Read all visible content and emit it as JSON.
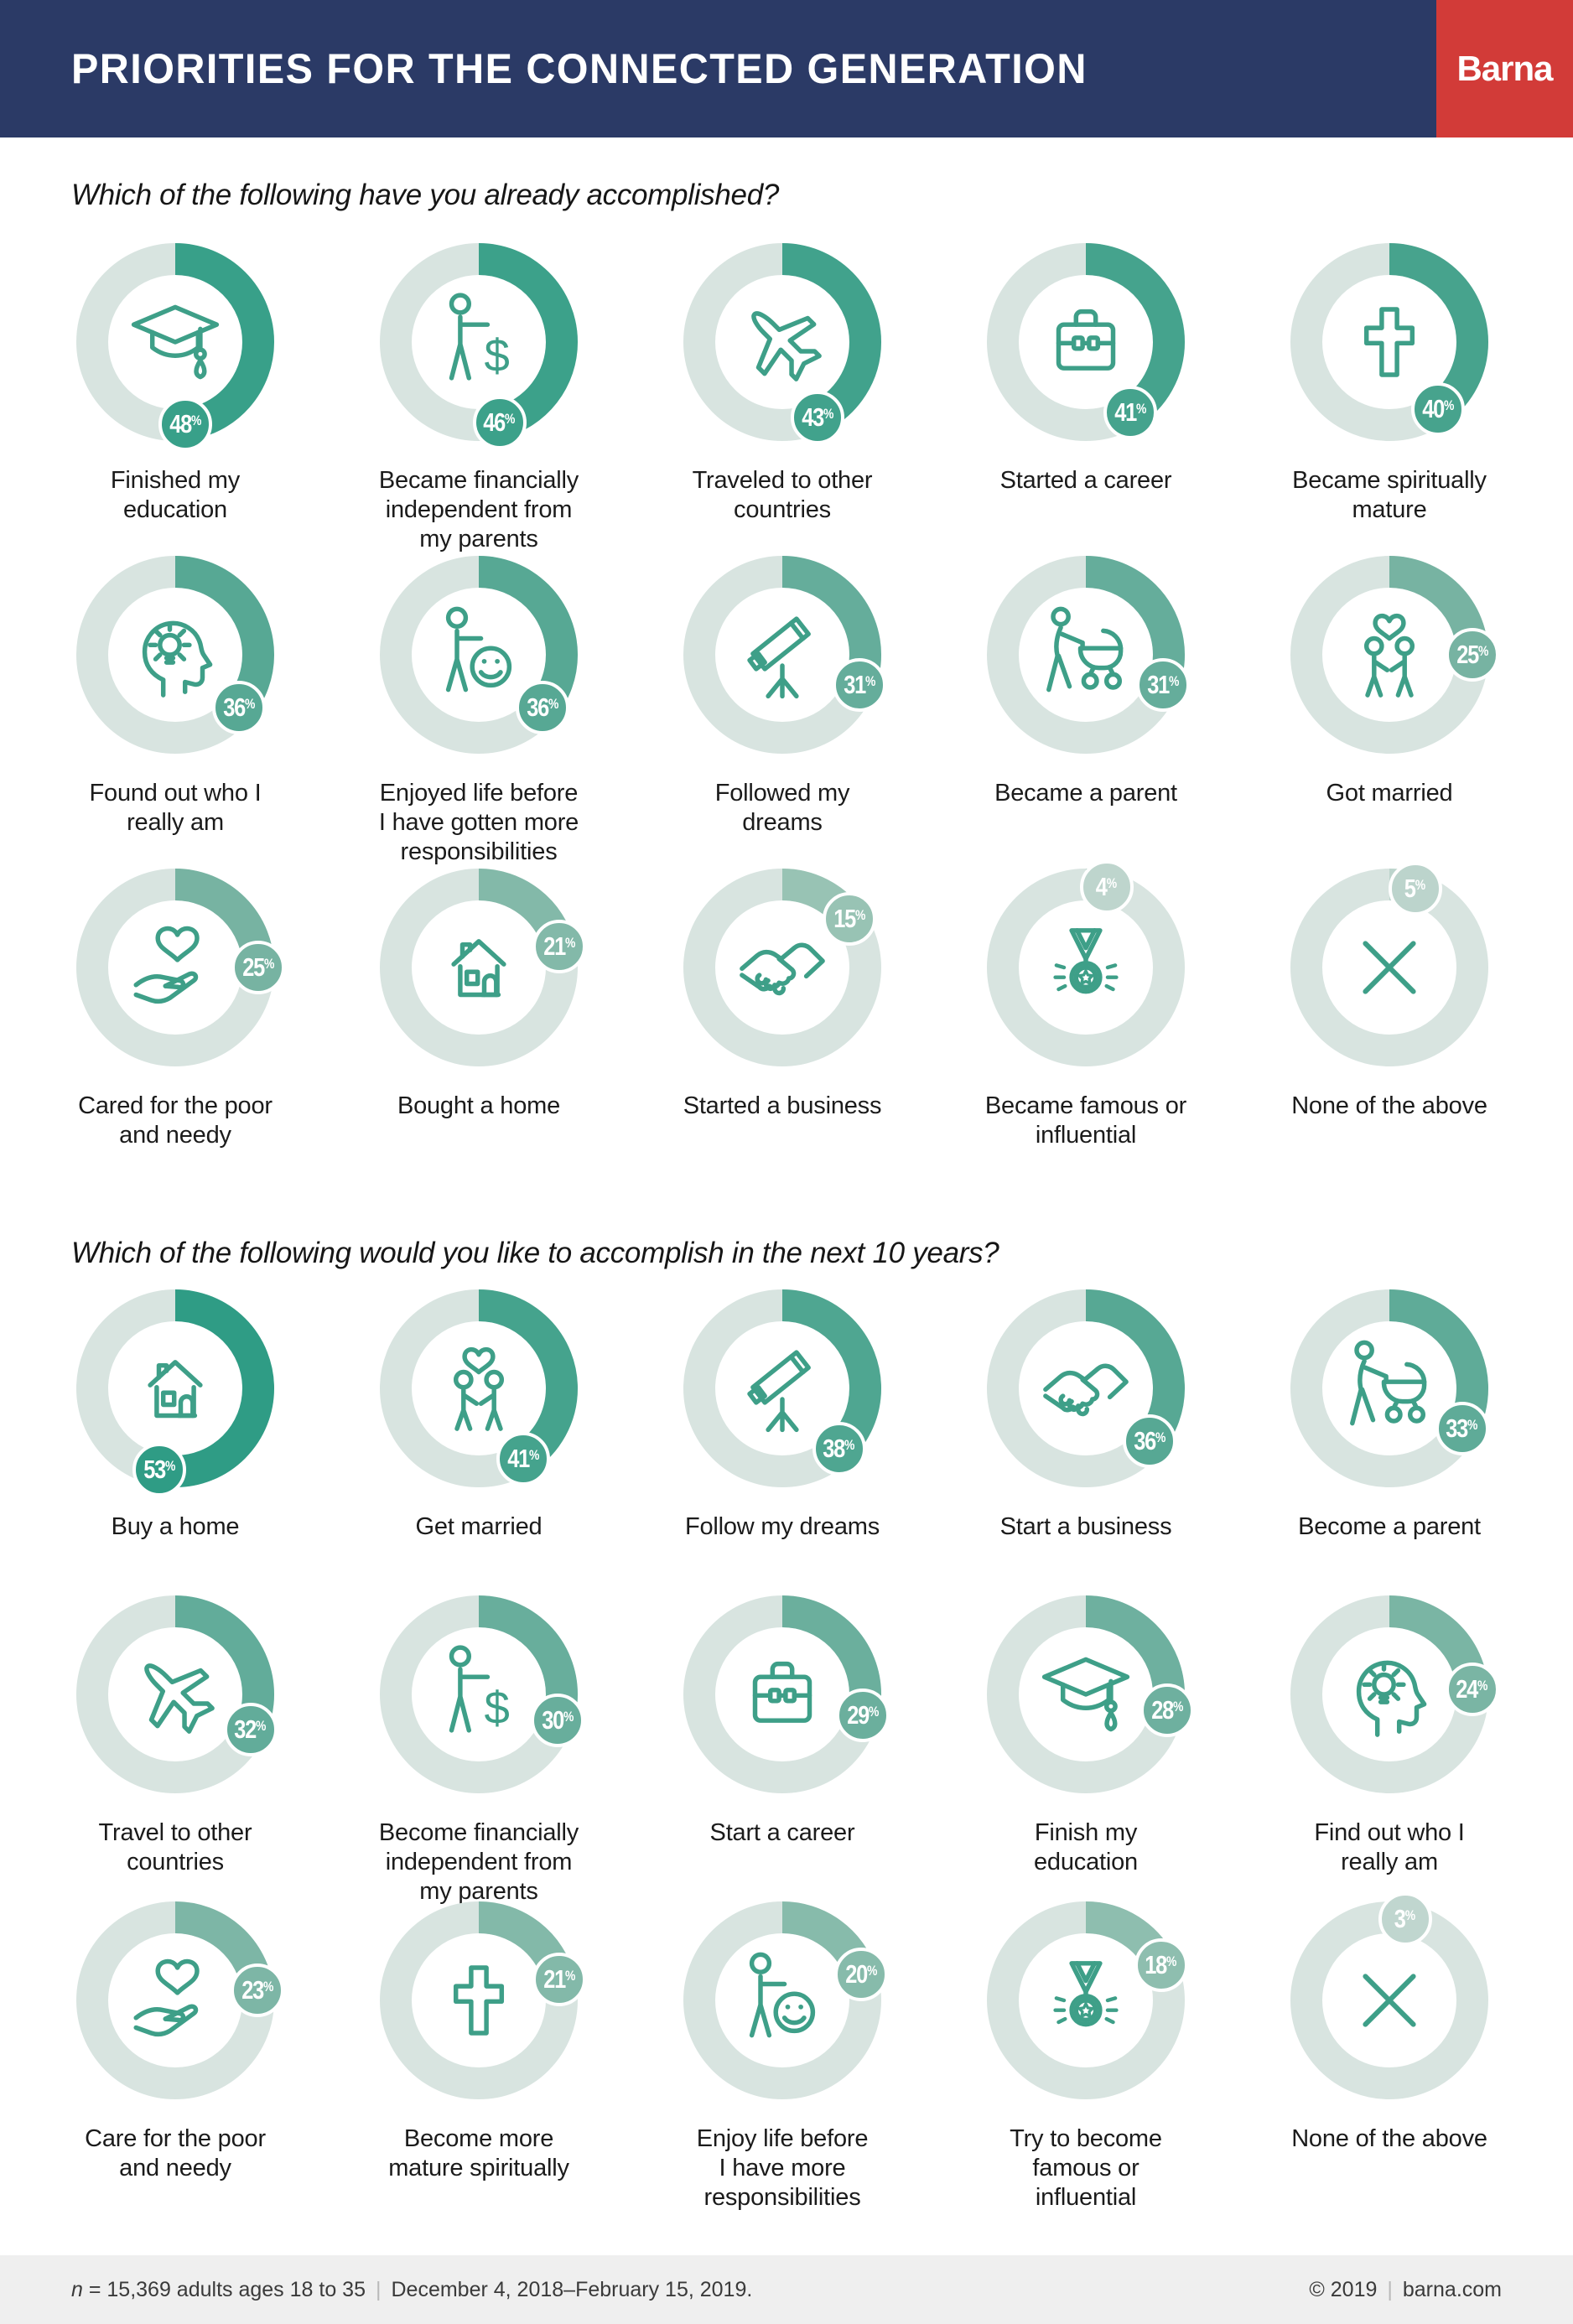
{
  "header": {
    "title": "PRIORITIES FOR THE CONNECTED GENERATION",
    "brand": "Barna"
  },
  "sections": [
    {
      "question": "Which of the following have you already accomplished?",
      "items": [
        {
          "label": "Finished my\neducation",
          "pct": 48,
          "icon": "graduation-cap"
        },
        {
          "label": "Became financially\nindependent from\nmy parents",
          "pct": 46,
          "icon": "person-dollar"
        },
        {
          "label": "Traveled to other\ncountries",
          "pct": 43,
          "icon": "airplane"
        },
        {
          "label": "Started a career",
          "pct": 41,
          "icon": "briefcase"
        },
        {
          "label": "Became spiritually\nmature",
          "pct": 40,
          "icon": "cross"
        },
        {
          "label": "Found out who I\nreally am",
          "pct": 36,
          "icon": "head-lightbulb"
        },
        {
          "label": "Enjoyed life before\nI have gotten more\nresponsibilities",
          "pct": 36,
          "icon": "person-smiley"
        },
        {
          "label": "Followed my\ndreams",
          "pct": 31,
          "icon": "telescope"
        },
        {
          "label": "Became a parent",
          "pct": 31,
          "icon": "parent-stroller"
        },
        {
          "label": "Got married",
          "pct": 25,
          "icon": "couple-heart"
        },
        {
          "label": "Cared for the poor\nand needy",
          "pct": 25,
          "icon": "heart-hand"
        },
        {
          "label": "Bought a home",
          "pct": 21,
          "icon": "house"
        },
        {
          "label": "Started a business",
          "pct": 15,
          "icon": "handshake"
        },
        {
          "label": "Became famous or\ninfluential",
          "pct": 4,
          "icon": "medal"
        },
        {
          "label": "None of the above",
          "pct": 5,
          "icon": "x-mark"
        }
      ]
    },
    {
      "question": "Which of the following would you like to accomplish in the next 10 years?",
      "items": [
        {
          "label": "Buy a home",
          "pct": 53,
          "icon": "house"
        },
        {
          "label": "Get married",
          "pct": 41,
          "icon": "couple-heart"
        },
        {
          "label": "Follow my dreams",
          "pct": 38,
          "icon": "telescope"
        },
        {
          "label": "Start a business",
          "pct": 36,
          "icon": "handshake"
        },
        {
          "label": "Become a parent",
          "pct": 33,
          "icon": "parent-stroller"
        },
        {
          "label": "Travel to other\ncountries",
          "pct": 32,
          "icon": "airplane"
        },
        {
          "label": "Become financially\nindependent from\nmy parents",
          "pct": 30,
          "icon": "person-dollar"
        },
        {
          "label": "Start a career",
          "pct": 29,
          "icon": "briefcase"
        },
        {
          "label": "Finish my\neducation",
          "pct": 28,
          "icon": "graduation-cap"
        },
        {
          "label": "Find out who I\nreally am",
          "pct": 24,
          "icon": "head-lightbulb"
        },
        {
          "label": "Care for the poor\nand needy",
          "pct": 23,
          "icon": "heart-hand"
        },
        {
          "label": "Become more\nmature spiritually",
          "pct": 21,
          "icon": "cross"
        },
        {
          "label": "Enjoy life before\nI have more\nresponsibilities",
          "pct": 20,
          "icon": "person-smiley"
        },
        {
          "label": "Try to become\nfamous or\ninfluential",
          "pct": 18,
          "icon": "medal"
        },
        {
          "label": "None of the above",
          "pct": 3,
          "icon": "x-mark"
        }
      ]
    }
  ],
  "chart_data": [
    {
      "type": "pie",
      "variant": "donut-percentage-gauges",
      "title": "Which of the following have you already accomplished?",
      "unit": "%",
      "categories": [
        "Finished my education",
        "Became financially independent from my parents",
        "Traveled to other countries",
        "Started a career",
        "Became spiritually mature",
        "Found out who I really am",
        "Enjoyed life before I have gotten more responsibilities",
        "Followed my dreams",
        "Became a parent",
        "Got married",
        "Cared for the poor and needy",
        "Bought a home",
        "Started a business",
        "Became famous or influential",
        "None of the above"
      ],
      "values": [
        48,
        46,
        43,
        41,
        40,
        36,
        36,
        31,
        31,
        25,
        25,
        21,
        15,
        4,
        5
      ]
    },
    {
      "type": "pie",
      "variant": "donut-percentage-gauges",
      "title": "Which of the following would you like to accomplish in the next 10 years?",
      "unit": "%",
      "categories": [
        "Buy a home",
        "Get married",
        "Follow my dreams",
        "Start a business",
        "Become a parent",
        "Travel to other countries",
        "Become financially independent from my parents",
        "Start a career",
        "Finish my education",
        "Find out who I really am",
        "Care for the poor and needy",
        "Become more mature spiritually",
        "Enjoy life before I have more responsibilities",
        "Try to become famous or influential",
        "None of the above"
      ],
      "values": [
        53,
        41,
        38,
        36,
        33,
        32,
        30,
        29,
        28,
        24,
        23,
        21,
        20,
        18,
        3
      ]
    }
  ],
  "footer": {
    "n_label": "n",
    "sample": " = 15,369 adults ages 18 to 35",
    "divider": "|",
    "dates": "December 4, 2018–February 15, 2019.",
    "copyright": "© 2019",
    "site": "barna.com"
  },
  "colors": {
    "navy": "#2B3A66",
    "red": "#D23B38",
    "ring": "#D8E4E0",
    "icon_stroke": "#3E9F88",
    "footer_bg": "#EFEFEF",
    "arc_scale": [
      [
        0,
        "#C6DAD3"
      ],
      [
        5,
        "#BCD4CC"
      ],
      [
        15,
        "#98C3B4"
      ],
      [
        21,
        "#83B9A9"
      ],
      [
        25,
        "#77B3A2"
      ],
      [
        31,
        "#65AD9B"
      ],
      [
        36,
        "#57A894"
      ],
      [
        40,
        "#47A38D"
      ],
      [
        48,
        "#38A089"
      ],
      [
        53,
        "#2F9C85"
      ]
    ]
  }
}
